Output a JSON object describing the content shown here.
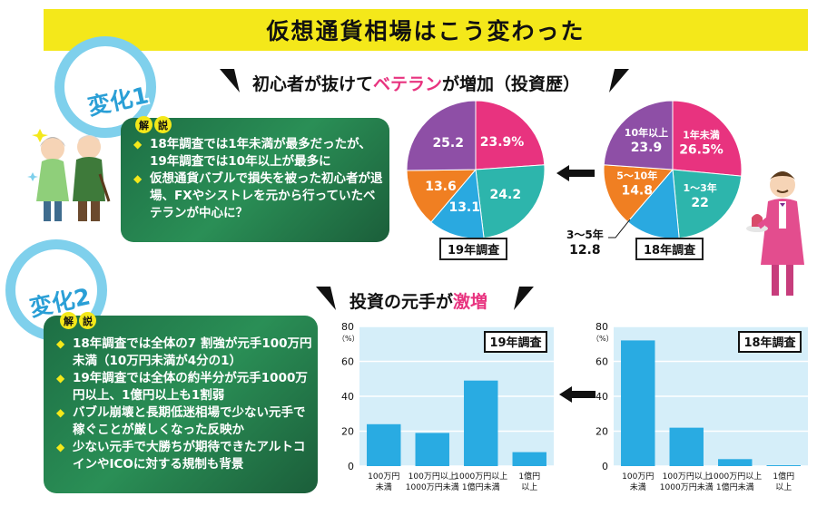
{
  "header": {
    "title": "仮想通貨相場はこう変わった"
  },
  "section1": {
    "tag": "変化1",
    "subtitle_pre": "初心者が抜けて",
    "subtitle_highlight": "ベテラン",
    "subtitle_post": "が増加（投資歴）",
    "kaisetsu": [
      "解",
      "説"
    ],
    "bullets": [
      "18年調査では1年未満が最多だったが、19年調査では10年以上が最多に",
      "仮想通貨バブルで損失を被った初心者が退場、FXやシストレを元から行っていたベテランが中心に？"
    ]
  },
  "section2": {
    "tag": "変化2",
    "subtitle_pre": "投資の元手が",
    "subtitle_highlight": "激増",
    "kaisetsu": [
      "解",
      "説"
    ],
    "bullets": [
      "18年調査では全体の7 割強が元手100万円未満（10万円未満が4分の1）",
      "19年調査では全体の約半分が元手1000万円以上、1億円以上も1割弱",
      "バブル崩壊と長期低迷相場で少ない元手で稼ぐことが厳しくなった反映か",
      "少ない元手で大勝ちが期待できたアルトコインやICOに対する規制も背景"
    ]
  },
  "colors": {
    "pink": "#e8337f",
    "teal": "#2db5ac",
    "blue": "#2aa9e0",
    "orange": "#f07f22",
    "purple": "#8e4fa6",
    "bar": "#29abe2",
    "bar_bg": "#d5eef9"
  },
  "chart_data": [
    {
      "type": "pie",
      "label": "19年調査",
      "slices": [
        {
          "value": 23.9,
          "text": "23.9%",
          "color": "#e8337f"
        },
        {
          "value": 24.2,
          "text": "24.2",
          "color": "#2db5ac"
        },
        {
          "value": 13.1,
          "text": "13.1",
          "color": "#2aa9e0"
        },
        {
          "value": 13.6,
          "text": "13.6",
          "color": "#f07f22"
        },
        {
          "value": 25.2,
          "text": "25.2",
          "color": "#8e4fa6"
        }
      ]
    },
    {
      "type": "pie",
      "label": "18年調査",
      "slices": [
        {
          "value": 26.5,
          "name": "1年未満",
          "text": "26.5%",
          "color": "#e8337f"
        },
        {
          "value": 22,
          "name": "1～3年",
          "text": "22",
          "color": "#2db5ac"
        },
        {
          "value": 12.8,
          "name": "3～5年",
          "text": "12.8",
          "color": "#2aa9e0"
        },
        {
          "value": 14.8,
          "name": "5～10年",
          "text": "14.8",
          "color": "#f07f22"
        },
        {
          "value": 23.9,
          "name": "10年以上",
          "text": "23.9",
          "color": "#8e4fa6"
        }
      ]
    },
    {
      "type": "bar",
      "label": "19年調査",
      "unit": "（%）",
      "ylim": [
        0,
        80
      ],
      "yticks": [
        0,
        20,
        40,
        60,
        80
      ],
      "categories": [
        [
          "100万円",
          "未満"
        ],
        [
          "100万円以上",
          "1000万円未満"
        ],
        [
          "1000万円以上",
          "1億円未満"
        ],
        [
          "1億円",
          "以上"
        ]
      ],
      "values": [
        24,
        19,
        49,
        8
      ]
    },
    {
      "type": "bar",
      "label": "18年調査",
      "unit": "（%）",
      "ylim": [
        0,
        80
      ],
      "yticks": [
        0,
        20,
        40,
        60,
        80
      ],
      "categories": [
        [
          "100万円",
          "未満"
        ],
        [
          "100万円以上",
          "1000万円未満"
        ],
        [
          "1000万円以上",
          "1億円未満"
        ],
        [
          "1億円",
          "以上"
        ]
      ],
      "values": [
        72,
        22,
        4,
        0.5
      ]
    }
  ]
}
